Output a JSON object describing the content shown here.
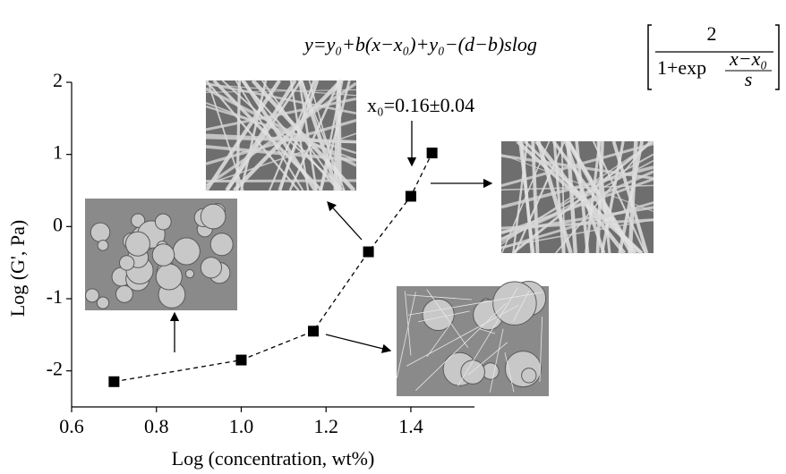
{
  "chart_data": {
    "type": "scatter",
    "x": [
      0.7,
      1.0,
      1.17,
      1.3,
      1.4,
      1.45
    ],
    "values": [
      -2.15,
      -1.85,
      -1.45,
      -0.35,
      0.42,
      1.02
    ],
    "color": "#000000",
    "fit_line": "dashed",
    "xlim": [
      0.6,
      1.55
    ],
    "ylim": [
      -2.5,
      2
    ],
    "xticks": [
      0.6,
      0.8,
      {
        "value": 1,
        "label": "1.0"
      },
      1.2,
      1.4
    ],
    "yticks": [
      -2,
      -1,
      0,
      1,
      2
    ],
    "x_label": "Log (concentration, wt%)",
    "y_label": "Log (G', Pa)",
    "equation": {
      "main": "y=y₀+b(x−x₀)+y₀−(d−b)slog",
      "numerator": "2",
      "denominator": "1+exp",
      "inner_numerator": "x−x₀",
      "inner_denominator": "s"
    },
    "annotation": "x₀=0.16±0.04"
  }
}
